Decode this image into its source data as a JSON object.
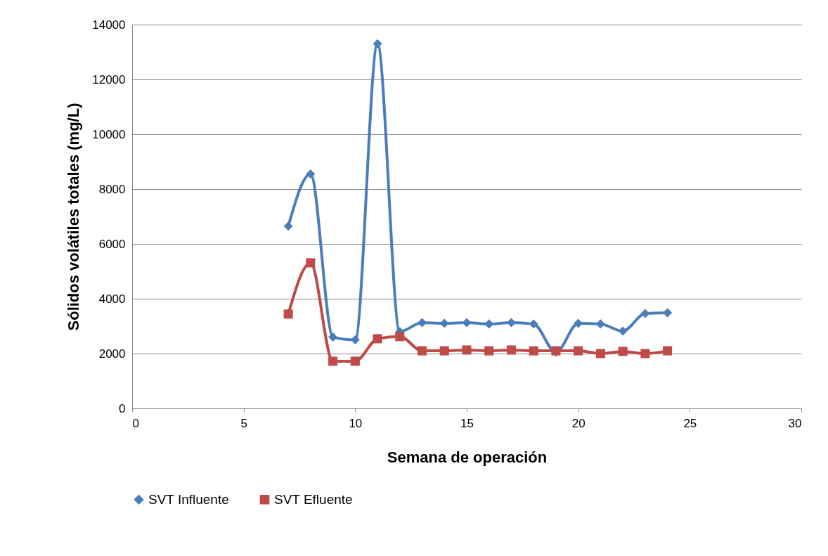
{
  "chart_data": {
    "type": "line",
    "xlabel": "Semana de operación",
    "ylabel": "Sólidos volátiles totales (mg/L)",
    "x": [
      7,
      8,
      9,
      10,
      11,
      12,
      13,
      14,
      15,
      16,
      17,
      18,
      19,
      20,
      21,
      22,
      23,
      24
    ],
    "series": [
      {
        "name": "SVT Influente",
        "color": "#4a7ebb",
        "marker": "diamond",
        "values": [
          6650,
          8550,
          2600,
          2500,
          13300,
          2800,
          3130,
          3100,
          3130,
          3080,
          3130,
          3080,
          2050,
          3100,
          3080,
          2820,
          3460,
          3490
        ]
      },
      {
        "name": "SVT Efluente",
        "color": "#be4b48",
        "marker": "square",
        "values": [
          3440,
          5310,
          1720,
          1720,
          2540,
          2620,
          2100,
          2100,
          2130,
          2100,
          2130,
          2100,
          2100,
          2100,
          2000,
          2080,
          2000,
          2100
        ]
      }
    ],
    "xlim": [
      0,
      30
    ],
    "xticks": [
      0,
      5,
      10,
      15,
      20,
      25,
      30
    ],
    "ylim": [
      0,
      14000
    ],
    "yticks": [
      0,
      2000,
      4000,
      6000,
      8000,
      10000,
      12000,
      14000
    ],
    "grid": "y",
    "legend": "bottom",
    "line_style": "solid"
  }
}
